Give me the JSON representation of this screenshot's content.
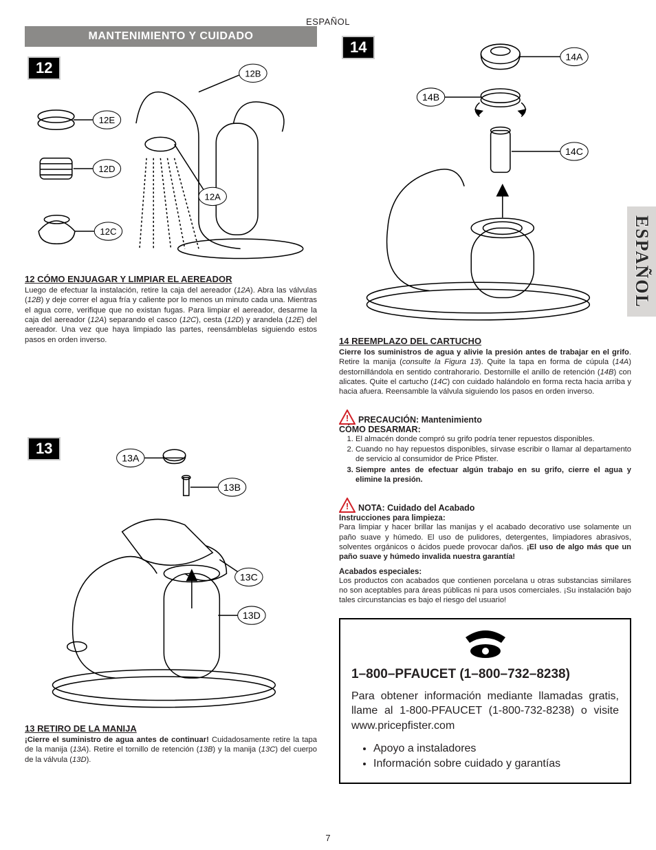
{
  "lang_header": "ESPAÑOL",
  "side_tab": "ESPAÑOL",
  "page_number": "7",
  "section_title": "MANTENIMIENTO Y CUIDADO",
  "colors": {
    "title_bar_bg": "#8b8a88",
    "title_bar_text": "#ffffff",
    "fig_num_bg": "#000000",
    "side_tab_bg": "#d9d7d5",
    "text": "#231f20",
    "caution_icon": "#d12027"
  },
  "fig12": {
    "num": "12",
    "callouts": {
      "A": "12A",
      "B": "12B",
      "C": "12C",
      "D": "12D",
      "E": "12E"
    },
    "heading": "12  CÓMO ENJUAGAR Y LIMPIAR EL AEREADOR",
    "body_html": "Luego de efectuar la instalación, retire la caja del aereador (<em>12A</em>). Abra las válvulas (<em>12B</em>) y deje correr el agua fría y caliente por lo menos un minuto cada una. Mientras el agua corre, verifique que no existan fugas. Para limpiar el aereador, desarme la caja del aereador (<em>12A</em>) separando el casco (<em>12C</em>), cesta (<em>12D</em>) y arandela (<em>12E</em>) del aereador. Una vez que haya limpiado las partes, reensámblelas siguiendo estos pasos en orden inverso."
  },
  "fig13": {
    "num": "13",
    "callouts": {
      "A": "13A",
      "B": "13B",
      "C": "13C",
      "D": "13D"
    },
    "heading": "13  RETIRO DE LA MANIJA",
    "body_html": "<strong>¡Cierre el suministro de agua antes de continuar!</strong> Cuidadosamente retire la tapa de la manija (<em>13A</em>). Retire el tornillo de retención (<em>13B</em>) y la manija (<em>13C</em>) del cuerpo de la válvula (<em>13D</em>)."
  },
  "fig14": {
    "num": "14",
    "callouts": {
      "A": "14A",
      "B": "14B",
      "C": "14C"
    },
    "heading": "14  REEMPLAZO DEL CARTUCHO",
    "body_html": "<strong>Cierre los suministros de agua y alivie la presión antes de trabajar en el grifo</strong>. Retire la manija (<em>consulte la Figura 13</em>). Quite la tapa en forma de cúpula (<em>14A</em>) destornillándola en sentido contrahorario. Destornille el anillo de retención (<em>14B</em>) con alicates. Quite el cartucho (<em>14C</em>) con cuidado halándolo en forma recta hacia arriba y hacia afuera. Reensamble la válvula siguiendo los pasos en orden inverso."
  },
  "caution1": {
    "heading": "PRECAUCIÓN: Mantenimiento",
    "subheading": "CÓMO DESARMAR:",
    "items": [
      {
        "text": "El almacén donde compró su grifo podría tener repuestos disponibles.",
        "bold": false
      },
      {
        "text": "Cuando no hay repuestos disponibles, sírvase escribir o llamar al departamento de servicio al consumidor de Price Pfister.",
        "bold": false
      },
      {
        "text": "Siempre antes de efectuar algún trabajo en su grifo, cierre el agua y elimine la presión.",
        "bold": true
      }
    ]
  },
  "note": {
    "heading": "NOTA: Cuidado del Acabado",
    "sub1": "Instrucciones para limpieza:",
    "body1_html": "Para limpiar y hacer brillar las manijas y el acabado decorativo use solamente un paño suave y húmedo. El uso de pulidores, detergentes, limpiadores abrasivos, solventes orgánicos o ácidos puede provocar daños. <strong>¡El uso de algo más que un paño suave y húmedo invalida nuestra garantía!</strong>",
    "sub2": "Acabados especiales:",
    "body2_html": "Los productos con acabados que contienen porcelana u otras substancias similares no son aceptables para áreas públicas ni para usos comerciales. ¡Su instalación bajo tales circunstancias es bajo el riesgo del usuario!"
  },
  "contact": {
    "title": "1–800–PFAUCET (1–800–732–8238)",
    "body": "Para obtener información mediante llamadas gratis, llame al 1-800-PFAUCET (1-800-732-8238) o visite www.pricepfister.com",
    "bullets": [
      "Apoyo a instaladores",
      "Información sobre cuidado y garantías"
    ]
  }
}
